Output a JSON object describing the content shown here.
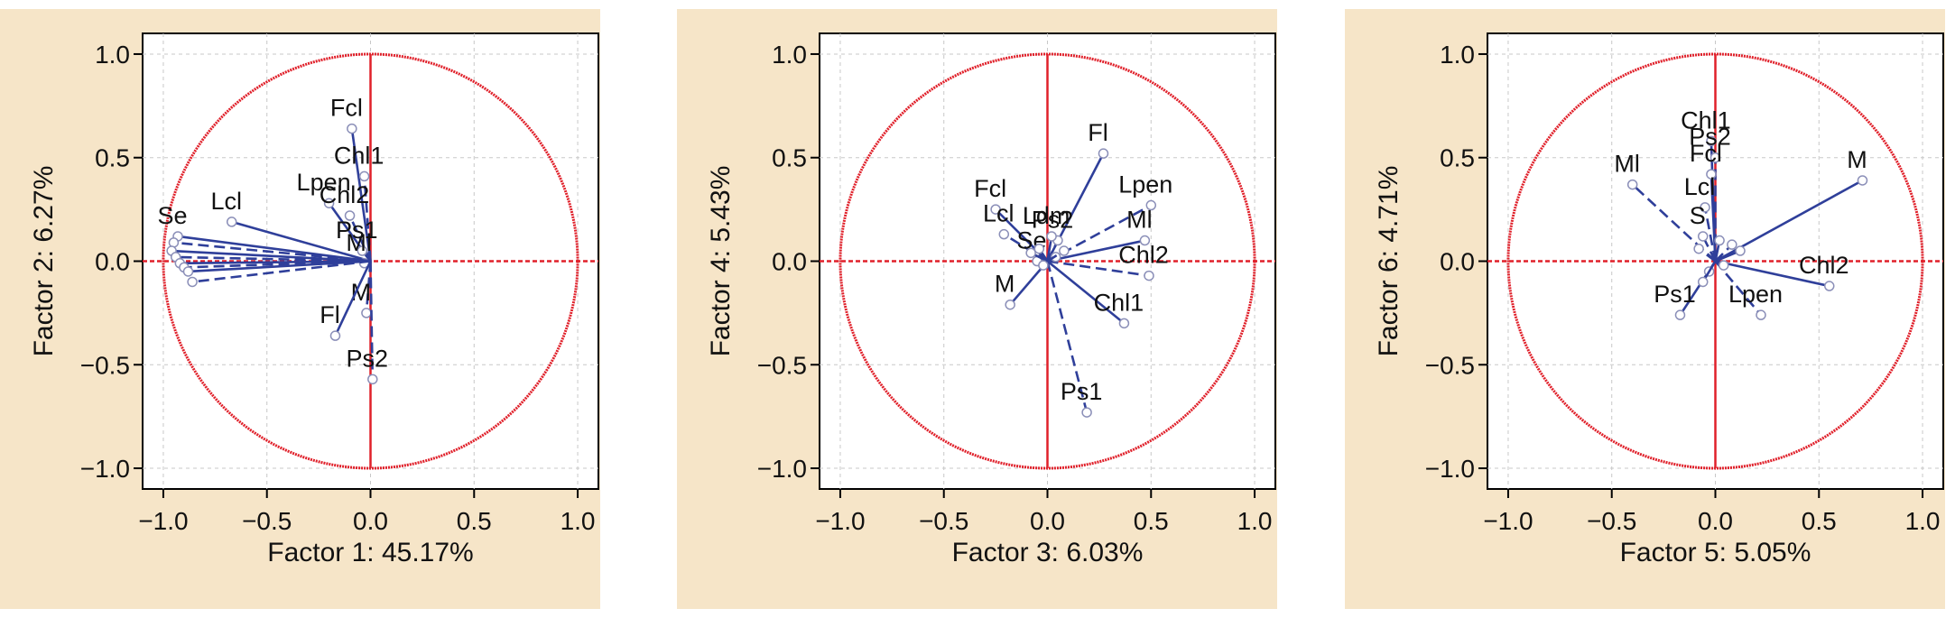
{
  "colors": {
    "panel_bg": "#f6e5c8",
    "plot_bg": "#ffffff",
    "circle": "#e0202a",
    "axis_lines": "#e0202a",
    "vectors": "#2f3f9a",
    "point_marker": "#8b8fb8",
    "grid": "#c8c8c8"
  },
  "chart_data": [
    {
      "type": "scatter",
      "subtype": "correlation-circle",
      "xlabel": "Factor 1: 45.17%",
      "ylabel": "Factor 2: 6.27%",
      "xlim": [
        -1.1,
        1.1
      ],
      "ylim": [
        -1.1,
        1.1
      ],
      "xticks": [
        "−1.0",
        "−0.5",
        "0.0",
        "0.5",
        "1.0"
      ],
      "yticks": [
        "−1.0",
        "−0.5",
        "0.0",
        "0.5",
        "1.0"
      ],
      "grid": true,
      "points": [
        {
          "label": "Fcl",
          "x": -0.09,
          "y": 0.64
        },
        {
          "label": "Chl1",
          "x": -0.03,
          "y": 0.41
        },
        {
          "label": "Lpen",
          "x": -0.2,
          "y": 0.28
        },
        {
          "label": "Chl2",
          "x": -0.1,
          "y": 0.22
        },
        {
          "label": "Lcl",
          "x": -0.67,
          "y": 0.19
        },
        {
          "label": "Ps1",
          "x": -0.04,
          "y": 0.05
        },
        {
          "label": "Ml",
          "x": -0.03,
          "y": -0.01
        },
        {
          "label": "M",
          "x": -0.02,
          "y": -0.25
        },
        {
          "label": "Fl",
          "x": -0.17,
          "y": -0.36
        },
        {
          "label": "Ps2",
          "x": 0.01,
          "y": -0.57
        },
        {
          "label": "Se",
          "x": -0.93,
          "y": 0.12
        },
        {
          "label": "",
          "x": -0.95,
          "y": 0.09
        },
        {
          "label": "",
          "x": -0.96,
          "y": 0.05
        },
        {
          "label": "",
          "x": -0.94,
          "y": 0.02
        },
        {
          "label": "",
          "x": -0.92,
          "y": -0.01
        },
        {
          "label": "",
          "x": -0.9,
          "y": -0.03
        },
        {
          "label": "",
          "x": -0.88,
          "y": -0.05
        },
        {
          "label": "",
          "x": -0.86,
          "y": -0.1
        }
      ]
    },
    {
      "type": "scatter",
      "subtype": "correlation-circle",
      "xlabel": "Factor 3: 6.03%",
      "ylabel": "Factor 4: 5.43%",
      "xlim": [
        -1.1,
        1.1
      ],
      "ylim": [
        -1.1,
        1.1
      ],
      "xticks": [
        "−1.0",
        "−0.5",
        "0.0",
        "0.5",
        "1.0"
      ],
      "yticks": [
        "−1.0",
        "−0.5",
        "0.0",
        "0.5",
        "1.0"
      ],
      "grid": true,
      "points": [
        {
          "label": "Fl",
          "x": 0.27,
          "y": 0.52
        },
        {
          "label": "Lpen",
          "x": 0.5,
          "y": 0.27
        },
        {
          "label": "Ml",
          "x": 0.47,
          "y": 0.1
        },
        {
          "label": "Chl2",
          "x": 0.49,
          "y": -0.07
        },
        {
          "label": "Chl1",
          "x": 0.37,
          "y": -0.3
        },
        {
          "label": "Ps1",
          "x": 0.19,
          "y": -0.73
        },
        {
          "label": "Fcl",
          "x": -0.25,
          "y": 0.25
        },
        {
          "label": "Lcl",
          "x": -0.21,
          "y": 0.13
        },
        {
          "label": "M",
          "x": -0.18,
          "y": -0.21
        },
        {
          "label": "Ps2",
          "x": 0.05,
          "y": 0.1
        },
        {
          "label": "Ldm",
          "x": 0.02,
          "y": 0.12
        },
        {
          "label": "Se",
          "x": -0.05,
          "y": 0.0
        },
        {
          "label": "",
          "x": -0.08,
          "y": 0.04
        },
        {
          "label": "",
          "x": -0.02,
          "y": -0.02
        },
        {
          "label": "",
          "x": 0.04,
          "y": 0.02
        },
        {
          "label": "",
          "x": 0.08,
          "y": 0.05
        },
        {
          "label": "",
          "x": -0.04,
          "y": 0.06
        }
      ]
    },
    {
      "type": "scatter",
      "subtype": "correlation-circle",
      "xlabel": "Factor 5: 5.05%",
      "ylabel": "Factor 6: 4.71%",
      "xlim": [
        -1.1,
        1.1
      ],
      "ylim": [
        -1.1,
        1.1
      ],
      "xticks": [
        "−1.0",
        "−0.5",
        "0.0",
        "0.5",
        "1.0"
      ],
      "yticks": [
        "−1.0",
        "−0.5",
        "0.0",
        "0.5",
        "1.0"
      ],
      "grid": true,
      "points": [
        {
          "label": "M",
          "x": 0.71,
          "y": 0.39
        },
        {
          "label": "Ml",
          "x": -0.4,
          "y": 0.37
        },
        {
          "label": "Chl1",
          "x": -0.02,
          "y": 0.58
        },
        {
          "label": "Ps2",
          "x": 0.0,
          "y": 0.5
        },
        {
          "label": "Fcl",
          "x": -0.02,
          "y": 0.42
        },
        {
          "label": "Lcl",
          "x": -0.05,
          "y": 0.26
        },
        {
          "label": "Chl2",
          "x": 0.55,
          "y": -0.12
        },
        {
          "label": "Lpen",
          "x": 0.22,
          "y": -0.26
        },
        {
          "label": "Ps1",
          "x": -0.17,
          "y": -0.26
        },
        {
          "label": "S",
          "x": -0.06,
          "y": 0.12
        },
        {
          "label": "",
          "x": 0.02,
          "y": 0.1
        },
        {
          "label": "",
          "x": 0.08,
          "y": 0.08
        },
        {
          "label": "",
          "x": 0.12,
          "y": 0.05
        },
        {
          "label": "",
          "x": -0.08,
          "y": 0.06
        },
        {
          "label": "",
          "x": 0.04,
          "y": -0.02
        },
        {
          "label": "",
          "x": -0.03,
          "y": -0.05
        },
        {
          "label": "",
          "x": -0.06,
          "y": -0.1
        }
      ]
    }
  ]
}
